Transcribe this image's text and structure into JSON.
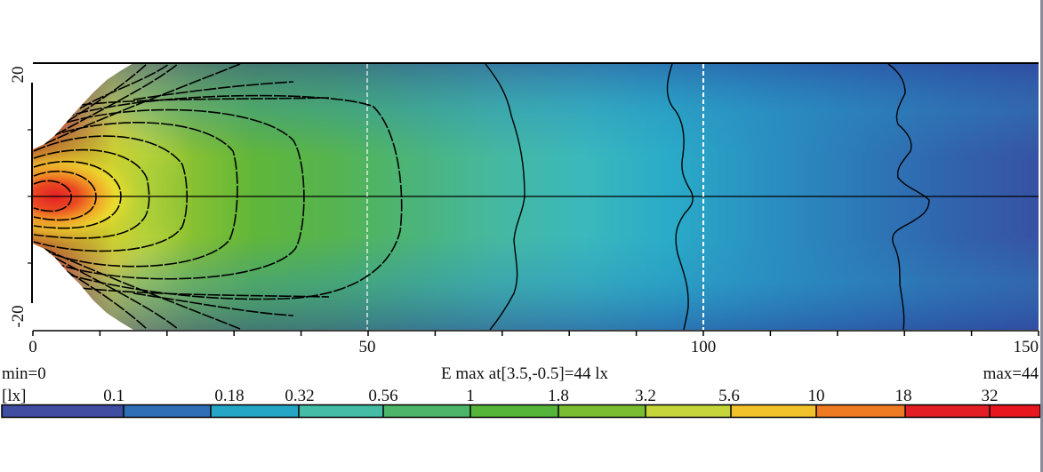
{
  "chart_data": {
    "type": "heatmap",
    "subtype": "contour illuminance map (top view)",
    "title": "E max at[3.5,-0.5]=44 lx",
    "unit_label": "[lx]",
    "min_label": "min=0",
    "max_label": "max=44",
    "min_value": 0,
    "max_value": 44,
    "max_location": [
      3.5,
      -0.5
    ],
    "xlabel": "",
    "ylabel": "",
    "xlim": [
      0,
      150
    ],
    "ylim": [
      -20,
      20
    ],
    "x_ticks": [
      0,
      10,
      20,
      30,
      40,
      50,
      60,
      70,
      80,
      90,
      100,
      110,
      120,
      130,
      140,
      150
    ],
    "x_tick_labels": [
      "0",
      "50",
      "100",
      "150"
    ],
    "x_tick_label_positions": [
      0,
      50,
      100,
      150
    ],
    "y_ticks": [
      -20,
      -10,
      0,
      10,
      20
    ],
    "y_tick_labels": [
      "20",
      "-20"
    ],
    "y_tick_label_positions": [
      20,
      -20
    ],
    "reference_lines": {
      "horizontal_centerline_y": 0,
      "dashed_vertical_x": [
        50,
        100
      ]
    },
    "contour_levels": [
      0.1,
      0.18,
      0.32,
      0.56,
      1,
      1.8,
      3.2,
      5.6,
      10,
      18,
      32
    ],
    "contour_axial_extent_x": {
      "32": 5.5,
      "18": 9.5,
      "10": 13.5,
      "5.6": 18,
      "3.2": 23.5,
      "1.8": 31,
      "1": 41.5,
      "0.56": 55,
      "0.32": 73,
      "0.18": 98,
      "0.1": 133
    },
    "colorbar": {
      "labels": [
        "[lx]",
        "0.1",
        "0.18",
        "0.32",
        "0.56",
        "1",
        "1.8",
        "3.2",
        "5.6",
        "10",
        "18",
        "32"
      ],
      "boundaries": [
        0.1,
        0.18,
        0.32,
        0.56,
        1,
        1.8,
        3.2,
        5.6,
        10,
        18,
        32
      ],
      "colors": [
        "#3f4ea0",
        "#2f6fb6",
        "#26a6c6",
        "#44bca6",
        "#4cb56a",
        "#55b43a",
        "#78bd32",
        "#c4d63a",
        "#f2c22a",
        "#ee7a22",
        "#e31e25",
        "#e8161e"
      ]
    },
    "grid": false,
    "legend_position": "bottom colorbar"
  }
}
